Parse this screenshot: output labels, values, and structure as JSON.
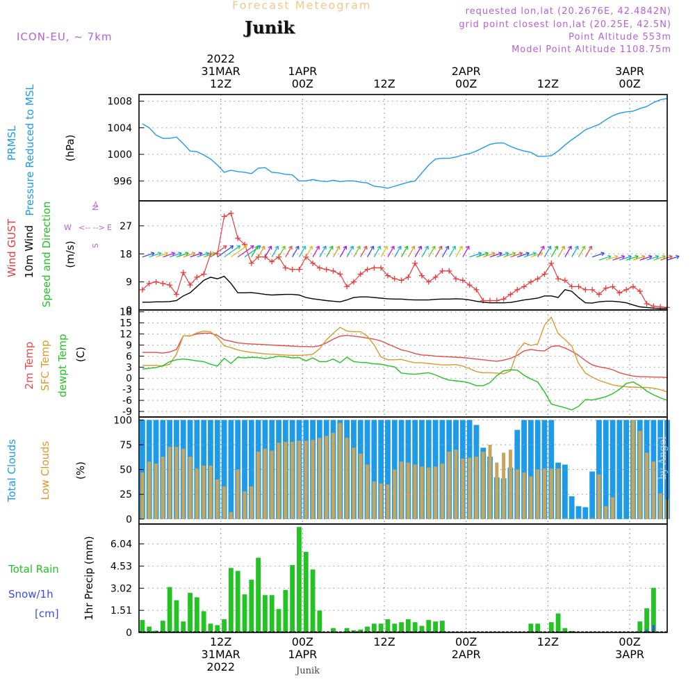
{
  "header": {
    "title": "Forecast Meteogram",
    "location": "Junik",
    "model": "ICON-EU, ~ 7km",
    "requested": "requested lon,lat (20.2676E, 42.4842N)",
    "grid_point": "grid point closest lon,lat (20.25E, 42.5N)",
    "point_altitude": "Point Altitude 553m",
    "model_altitude": "Model Point Altitude 1108.75m",
    "footer_location": "Junik",
    "credit": "by Angel"
  },
  "colors": {
    "pressure": "#1e9be8",
    "gust": "#e83c3c",
    "wind": "#000000",
    "direction": "#22c322",
    "t2m": "#e84a4a",
    "sfc": "#d99a2b",
    "dewpt": "#22c322",
    "total_cloud": "#1e9be8",
    "low_cloud": "#c9a55b",
    "rain": "#22c322",
    "snow": "#3a4cf0",
    "title": "#f2c98a",
    "info": "#b65fd6"
  },
  "time_axis": {
    "top_labels": [
      {
        "t": 12,
        "lines": [
          "2022",
          "31MAR",
          "12Z"
        ]
      },
      {
        "t": 24,
        "lines": [
          "1APR",
          "00Z"
        ]
      },
      {
        "t": 36,
        "lines": [
          "12Z"
        ]
      },
      {
        "t": 48,
        "lines": [
          "2APR",
          "00Z"
        ]
      },
      {
        "t": 60,
        "lines": [
          "12Z"
        ]
      },
      {
        "t": 72,
        "lines": [
          "3APR",
          "00Z"
        ]
      }
    ],
    "bottom_labels": [
      {
        "t": 12,
        "lines": [
          "12Z",
          "31MAR",
          "2022"
        ]
      },
      {
        "t": 24,
        "lines": [
          "00Z",
          "1APR"
        ]
      },
      {
        "t": 36,
        "lines": [
          "12Z"
        ]
      },
      {
        "t": 48,
        "lines": [
          "00Z",
          "2APR"
        ]
      },
      {
        "t": 60,
        "lines": [
          "12Z"
        ]
      },
      {
        "t": 72,
        "lines": [
          "00Z",
          "3APR"
        ]
      }
    ]
  },
  "chart_data": [
    {
      "type": "line",
      "panel": "pressure",
      "ylabel_lines": [
        "PRMSL",
        "Pressure Reduced to MSL"
      ],
      "unit": "(hPa)",
      "ylim": [
        993,
        1009
      ],
      "yticks": [
        "996",
        "1000",
        "1004",
        "1008"
      ],
      "grid": true,
      "series": [
        {
          "name": "PRMSL",
          "color": "#1e9be8",
          "values": [
            1004.6,
            1004.0,
            1002.9,
            1002.4,
            1002.4,
            1002.6,
            1001.6,
            1000.5,
            1000.4,
            999.9,
            999.3,
            998.4,
            997.3,
            997.6,
            997.4,
            997.3,
            997.1,
            997.9,
            998.0,
            997.3,
            997.2,
            997.0,
            996.9,
            996.0,
            996.0,
            996.2,
            996.0,
            995.9,
            996.1,
            995.9,
            996.0,
            996.0,
            995.8,
            995.7,
            995.2,
            995.1,
            994.9,
            995.2,
            995.5,
            995.8,
            996.0,
            997.2,
            998.4,
            999.3,
            999.4,
            999.4,
            999.6,
            999.9,
            1000.1,
            1000.5,
            1001.0,
            1001.5,
            1001.7,
            1001.7,
            1001.2,
            1000.8,
            1000.5,
            1000.3,
            999.7,
            999.7,
            999.8,
            1000.5,
            1001.4,
            1002.2,
            1002.9,
            1003.7,
            1004.1,
            1004.5,
            1005.2,
            1005.8,
            1006.2,
            1006.4,
            1006.5,
            1006.9,
            1007.2,
            1007.8,
            1008.2,
            1008.4
          ]
        }
      ]
    },
    {
      "type": "line",
      "panel": "wind",
      "ylabel_lines": [
        "Wind GUST",
        "10m Wind",
        "Speed and Direction"
      ],
      "unit": "(m/s)",
      "compass": [
        "N",
        "W",
        "E",
        "S"
      ],
      "ylim": [
        0,
        35
      ],
      "yticks": [
        "0",
        "9",
        "18",
        "27"
      ],
      "grid": true,
      "series": [
        {
          "name": "Wind GUST",
          "color": "#e83c3c",
          "values": [
            6.5,
            8.5,
            9,
            8.5,
            8,
            5,
            12,
            8,
            10.5,
            11.5,
            18,
            18,
            30,
            31,
            23,
            21,
            15,
            17,
            17,
            15.5,
            17,
            13.5,
            13,
            13,
            17,
            15,
            13.5,
            13,
            12.5,
            11.5,
            7.5,
            9,
            11.5,
            13,
            13.5,
            13.5,
            11,
            10,
            9.5,
            10.5,
            15,
            11,
            9,
            10.5,
            12.5,
            12.5,
            10,
            9.5,
            8,
            6.5,
            3,
            3,
            3,
            3.5,
            5,
            6.5,
            7.5,
            9,
            10,
            11.5,
            15,
            10,
            9.5,
            7.5,
            7.5,
            6.5,
            6.5,
            5,
            7,
            7.5,
            5.5,
            6.5,
            7.5,
            6,
            2,
            1.2,
            1,
            0.8
          ]
        },
        {
          "name": "10m Wind",
          "color": "#000000",
          "values": [
            2.5,
            2.5,
            2.6,
            2.6,
            2.7,
            3.0,
            4.5,
            5.5,
            7.5,
            9.5,
            10.5,
            10.0,
            10.8,
            8.5,
            5.5,
            5.5,
            5.6,
            5.3,
            5.0,
            4.8,
            4.9,
            5.0,
            5.0,
            4.8,
            4.0,
            3.6,
            3.3,
            3.0,
            2.8,
            2.6,
            3.2,
            4.0,
            4.2,
            4.2,
            4.0,
            3.8,
            3.6,
            3.5,
            3.5,
            3.3,
            3.2,
            3.2,
            3.2,
            3.4,
            3.5,
            3.5,
            3.6,
            3.5,
            3.2,
            2.8,
            2.5,
            2.3,
            2.3,
            2.3,
            2.4,
            2.8,
            3.2,
            3.5,
            3.8,
            4.5,
            4.5,
            4.0,
            6.5,
            6.0,
            4.0,
            2.3,
            2.2,
            2.6,
            2.8,
            2.8,
            2.6,
            2.3,
            1.6,
            1.0,
            0.8,
            0.6,
            0.5,
            0.5
          ]
        }
      ]
    },
    {
      "type": "line",
      "panel": "temperature",
      "ylabel_lines": [
        "2m Temp",
        "SFC Temp",
        "dewpt Temp"
      ],
      "unit": "(C)",
      "ylim": [
        -10.5,
        18.5
      ],
      "yticks": [
        "-9",
        "-6",
        "-3",
        "0",
        "3",
        "6",
        "9",
        "12",
        "15",
        "18"
      ],
      "grid": true,
      "series": [
        {
          "name": "2m Temp",
          "color": "#e84a4a",
          "values": [
            7,
            7,
            7,
            6.8,
            7.1,
            7.8,
            11.5,
            11.5,
            12.0,
            12.2,
            12.2,
            11.6,
            10.4,
            10.0,
            9.6,
            9.4,
            9.3,
            9.2,
            9.1,
            9.0,
            8.9,
            8.8,
            8.7,
            8.6,
            8.6,
            8.5,
            8.8,
            9.6,
            10.6,
            11.4,
            11.6,
            11.4,
            11.2,
            10.9,
            10.6,
            10.1,
            9.3,
            8.5,
            7.7,
            7.3,
            6.7,
            6.3,
            6.2,
            6.0,
            5.9,
            5.8,
            5.7,
            5.6,
            5.4,
            5.2,
            5.0,
            4.8,
            4.6,
            4.9,
            5.4,
            6.2,
            7.4,
            7.8,
            7.5,
            7.4,
            8.6,
            8.8,
            8.2,
            7.3,
            6.2,
            4.8,
            3.6,
            3.1,
            2.8,
            2.3,
            1.5,
            1.0,
            0.6,
            0.4,
            0.4,
            0.3,
            0.3,
            0.2
          ]
        },
        {
          "name": "SFC Temp",
          "color": "#d99a2b",
          "values": [
            3.5,
            3.5,
            3.5,
            3.3,
            3.8,
            6.5,
            11.5,
            11.4,
            12.3,
            12.8,
            12.6,
            11.0,
            8.8,
            8.3,
            7.7,
            7.3,
            7.0,
            6.8,
            6.6,
            6.5,
            6.4,
            6.3,
            6.2,
            6.2,
            6.3,
            6.5,
            8.0,
            10.4,
            12.2,
            13.8,
            12.8,
            12.6,
            12.6,
            11.4,
            9.0,
            5.8,
            5.0,
            5.0,
            5.1,
            4.6,
            4.2,
            4.2,
            4.0,
            3.8,
            3.6,
            3.6,
            3.7,
            3.3,
            2.6,
            1.8,
            1.5,
            1.5,
            1.4,
            1.2,
            2.0,
            7.2,
            9.6,
            8.9,
            9.3,
            14.4,
            16.5,
            12.1,
            10.5,
            8.7,
            4.0,
            1.4,
            0.3,
            -0.6,
            -1.2,
            -1.8,
            -2.1,
            -2.3,
            -2.4,
            -2.5,
            -2.5,
            -2.7,
            -3.1,
            -3.7
          ]
        },
        {
          "name": "dewpt Temp",
          "color": "#22c322",
          "values": [
            2.5,
            2.7,
            2.9,
            3.4,
            4.5,
            5.0,
            5.2,
            5.0,
            4.7,
            4.5,
            3.8,
            3.3,
            5.4,
            4.0,
            5.7,
            5.5,
            5.7,
            5.6,
            5.3,
            5.6,
            6.0,
            5.8,
            5.5,
            5.6,
            4.7,
            5.5,
            4.5,
            4.5,
            5.2,
            4.2,
            5.7,
            4.5,
            4.3,
            4.2,
            3.9,
            3.8,
            3.4,
            3.1,
            1.4,
            1.2,
            1.1,
            1.3,
            1.5,
            0.9,
            0.1,
            -0.5,
            -0.7,
            -0.9,
            -1.3,
            -2.0,
            -2.0,
            -1.2,
            0.7,
            2.0,
            2.3,
            2.2,
            0.8,
            -0.2,
            -1.0,
            -3.7,
            -7.0,
            -7.5,
            -8.0,
            -8.6,
            -7.6,
            -5.8,
            -5.9,
            -5.5,
            -5.0,
            -4.2,
            -3.0,
            -1.4,
            -1.0,
            -2.0,
            -3.5,
            -4.5,
            -5.3,
            -6.0
          ]
        }
      ]
    },
    {
      "type": "bar",
      "panel": "clouds",
      "ylabel_lines": [
        "Total Clouds",
        "Low Clouds"
      ],
      "unit": "(%)",
      "ylim": [
        -5,
        103
      ],
      "yticks": [
        "0",
        "25",
        "50",
        "75",
        "100"
      ],
      "grid": true,
      "series": [
        {
          "name": "Total Clouds",
          "color": "#1e9be8",
          "values": [
            100,
            100,
            100,
            100,
            100,
            100,
            100,
            100,
            100,
            100,
            100,
            100,
            100,
            100,
            100,
            100,
            100,
            100,
            100,
            100,
            100,
            100,
            100,
            100,
            100,
            100,
            100,
            100,
            100,
            100,
            100,
            100,
            100,
            100,
            100,
            100,
            100,
            100,
            100,
            100,
            100,
            100,
            100,
            100,
            100,
            100,
            100,
            100,
            100,
            95,
            72,
            63,
            42,
            41,
            52,
            90,
            100,
            100,
            100,
            100,
            100,
            57,
            55,
            23,
            13,
            12,
            48,
            100,
            100,
            100,
            100,
            100,
            100,
            100,
            100,
            100,
            100,
            100
          ]
        },
        {
          "name": "Low Clouds",
          "color": "#c9a55b",
          "values": [
            47,
            58,
            56,
            63,
            73,
            73,
            71,
            63,
            51,
            54,
            54,
            40,
            33,
            7,
            50,
            28,
            33,
            68,
            71,
            69,
            77,
            78,
            78,
            79,
            79,
            80,
            82,
            84,
            87,
            97,
            82,
            72,
            66,
            55,
            38,
            36,
            35,
            50,
            58,
            57,
            55,
            53,
            52,
            53,
            56,
            68,
            70,
            61,
            62,
            63,
            68,
            75,
            57,
            67,
            70,
            50,
            47,
            43,
            50,
            51,
            51,
            51,
            1,
            0,
            1,
            0,
            1,
            45,
            13,
            22,
            0,
            0,
            100,
            89,
            67,
            58,
            26,
            20
          ]
        }
      ]
    },
    {
      "type": "bar",
      "panel": "precip",
      "ylabel_lines": [
        "1hr Precip (mm)"
      ],
      "left_labels": [
        "Total  Rain",
        "Snow/1h",
        "[cm]"
      ],
      "ylim": [
        0,
        7.4
      ],
      "yticks": [
        "0",
        "1.51",
        "3.02",
        "4.53",
        "6.04"
      ],
      "grid": true,
      "series": [
        {
          "name": "Total Rain",
          "color": "#22c322",
          "values": [
            0.85,
            0.4,
            0.12,
            0.8,
            3.1,
            2.2,
            0.75,
            2.7,
            2.4,
            1.45,
            0.6,
            0.5,
            0.9,
            4.4,
            4.2,
            2.6,
            3.6,
            5.1,
            2.55,
            2.55,
            1.6,
            2.9,
            4.6,
            7.2,
            5.5,
            4.3,
            1.5,
            0,
            0.3,
            0,
            0.3,
            0.15,
            0.2,
            0.4,
            0.6,
            0.6,
            0.9,
            0.6,
            0.7,
            0.9,
            0.7,
            0.45,
            0.85,
            0.75,
            0.8,
            0,
            0,
            0,
            0,
            0,
            0,
            0,
            0,
            0,
            0,
            0,
            0,
            0.6,
            0.6,
            0,
            0.7,
            1.3,
            0.3,
            0.1,
            0,
            0,
            0,
            0,
            0,
            0,
            0,
            0,
            0.05,
            0.75,
            1.65,
            3.05,
            0,
            0
          ]
        },
        {
          "name": "Snow/1h",
          "color": "#3a4cf0",
          "values": [
            0,
            0,
            0,
            0,
            0,
            0,
            0,
            0,
            0,
            0,
            0,
            0,
            0,
            0,
            0,
            0,
            0,
            0,
            0,
            0,
            0,
            0,
            0,
            0,
            0,
            0,
            0,
            0,
            0,
            0,
            0,
            0,
            0,
            0,
            0,
            0,
            0,
            0,
            0,
            0,
            0,
            0,
            0,
            0,
            0,
            0,
            0,
            0,
            0,
            0,
            0,
            0,
            0,
            0,
            0,
            0,
            0,
            0,
            0,
            0,
            0,
            0,
            0,
            0,
            0,
            0,
            0,
            0,
            0,
            0,
            0,
            0,
            0,
            0,
            0.2,
            0.5,
            0,
            0
          ]
        }
      ]
    }
  ]
}
